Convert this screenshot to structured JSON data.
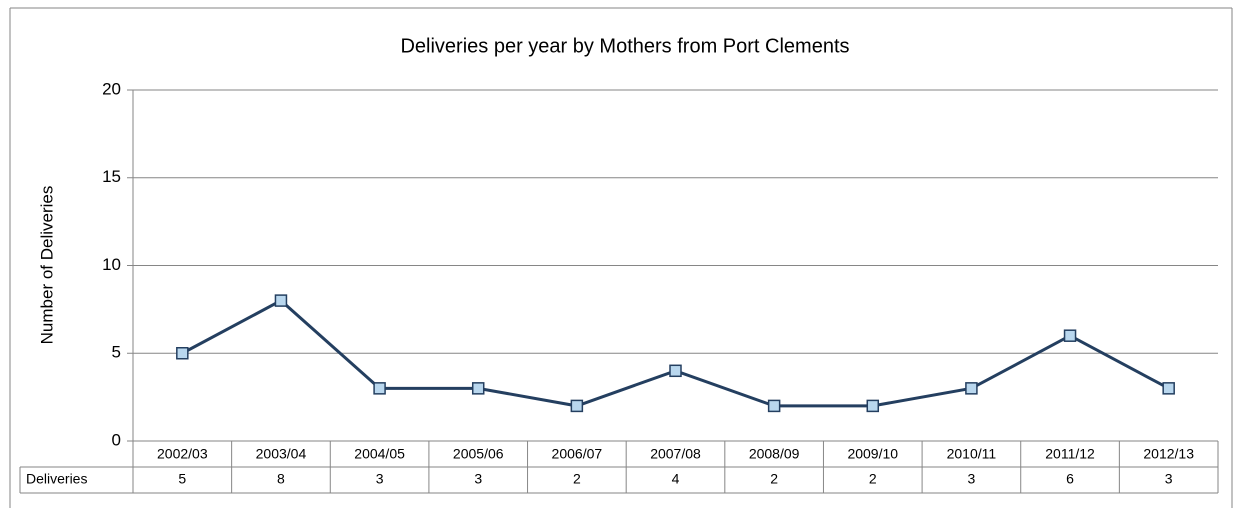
{
  "chart_data": {
    "type": "line",
    "title": "Deliveries per year by Mothers from Port Clements",
    "y_label": "Number of Deliveries",
    "categories": [
      "2002/03",
      "2003/04",
      "2004/05",
      "2005/06",
      "2006/07",
      "2007/08",
      "2008/09",
      "2009/10",
      "2010/11",
      "2011/12",
      "2012/13"
    ],
    "series": [
      {
        "name": "Deliveries",
        "color": "#243f60",
        "marker_color": "#b9d7ee",
        "values": [
          5,
          8,
          3,
          3,
          2,
          4,
          2,
          2,
          3,
          6,
          3
        ]
      }
    ],
    "ylim": [
      0,
      20
    ],
    "yticks": [
      0,
      5,
      10,
      15,
      20
    ],
    "grid": true,
    "data_table": true
  }
}
